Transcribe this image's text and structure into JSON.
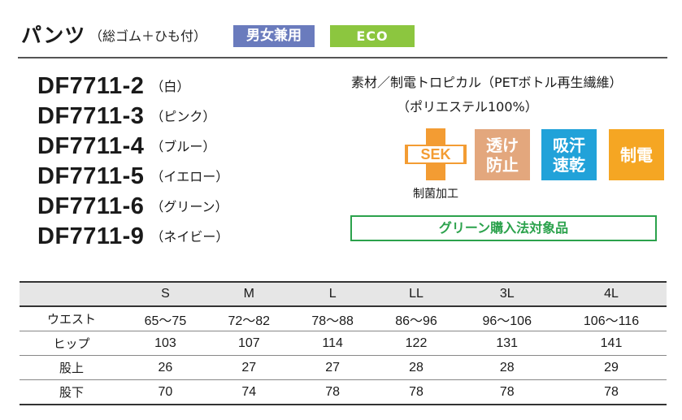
{
  "header": {
    "title": "パンツ",
    "title_note": "（総ゴム＋ひも付）",
    "badge_unisex": "男女兼用",
    "badge_eco": "ECO"
  },
  "products": [
    {
      "code": "DF7711-2",
      "color": "（白）"
    },
    {
      "code": "DF7711-3",
      "color": "（ピンク）"
    },
    {
      "code": "DF7711-4",
      "color": "（ブルー）"
    },
    {
      "code": "DF7711-5",
      "color": "（イエロー）"
    },
    {
      "code": "DF7711-6",
      "color": "（グリーン）"
    },
    {
      "code": "DF7711-9",
      "color": "（ネイビー）"
    }
  ],
  "material": {
    "line1": "素材／制電トロピカル（PETボトル再生繊維）",
    "line2": "（ポリエステル100%）"
  },
  "features": {
    "sek_mark": "SEK",
    "sek_label": "制菌加工",
    "sek_color": "#f39c33",
    "items": [
      {
        "line1": "透け",
        "line2": "防止",
        "color": "#e3a77d"
      },
      {
        "line1": "吸汗",
        "line2": "速乾",
        "color": "#21a2d9"
      },
      {
        "line1": "制電",
        "line2": "",
        "color": "#f5a623"
      }
    ],
    "green_purchase": "グリーン購入法対象品"
  },
  "size_table": {
    "headers": [
      "",
      "S",
      "M",
      "L",
      "LL",
      "3L",
      "4L"
    ],
    "rows": [
      {
        "label": "ウエスト",
        "values": [
          "65〜75",
          "72〜82",
          "78〜88",
          "86〜96",
          "96〜106",
          "106〜116"
        ]
      },
      {
        "label": "ヒップ",
        "values": [
          "103",
          "107",
          "114",
          "122",
          "131",
          "141"
        ]
      },
      {
        "label": "股上",
        "values": [
          "26",
          "27",
          "27",
          "28",
          "28",
          "29"
        ]
      },
      {
        "label": "股下",
        "values": [
          "70",
          "74",
          "78",
          "78",
          "78",
          "78"
        ]
      }
    ]
  }
}
